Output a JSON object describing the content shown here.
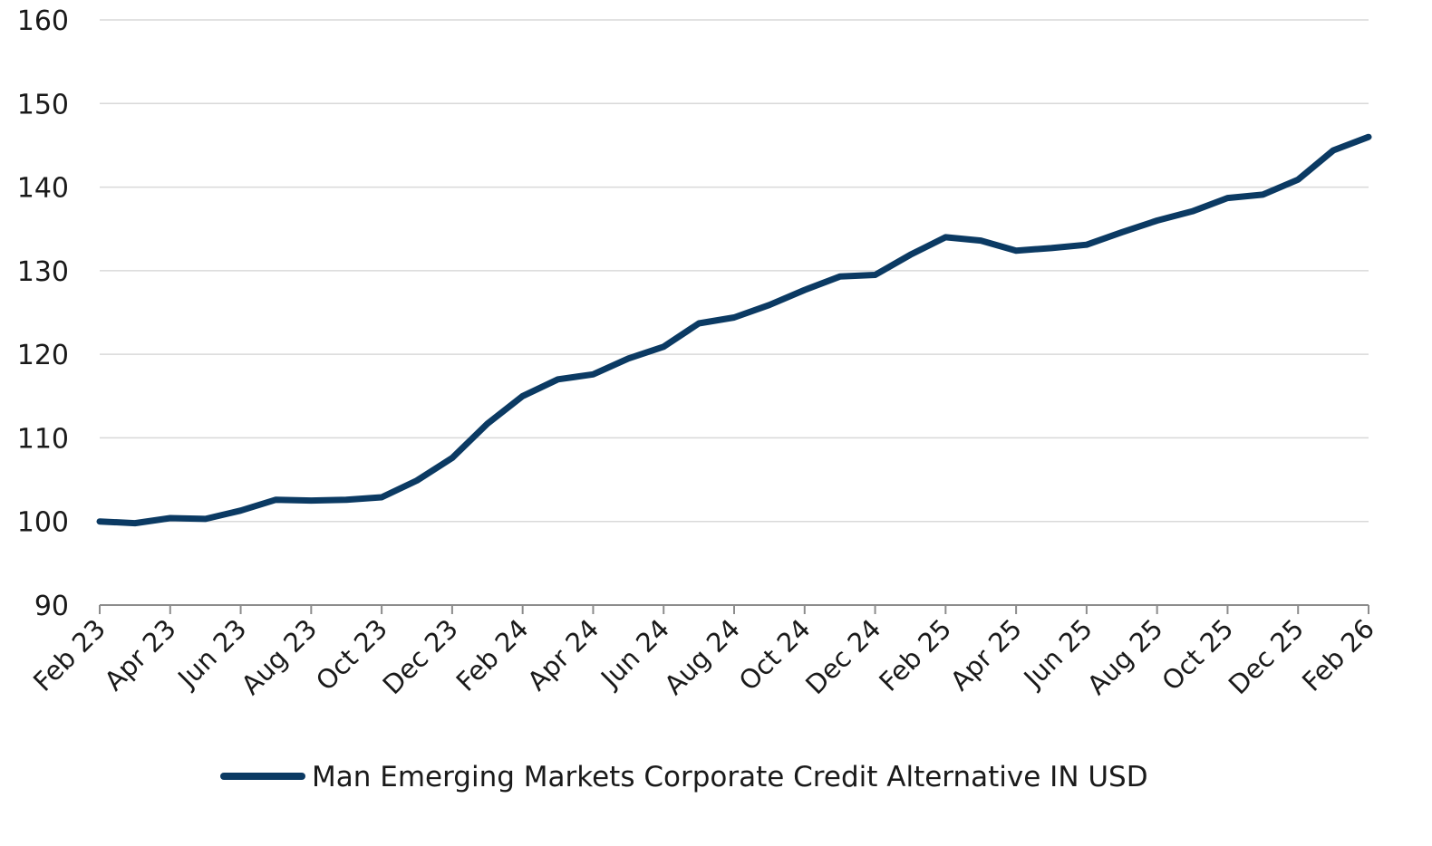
{
  "chart_data": {
    "type": "line",
    "title": "",
    "xlabel": "",
    "ylabel": "",
    "ylim": [
      90,
      160
    ],
    "yticks": [
      "160",
      "150",
      "140",
      "130",
      "120",
      "110",
      "100",
      "90"
    ],
    "xtick_labels": [
      "Feb 23",
      "Apr 23",
      "Jun 23",
      "Aug 23",
      "Oct 23",
      "Dec 23",
      "Feb 24",
      "Apr 24",
      "Jun 24",
      "Aug 24",
      "Oct 24",
      "Dec 24",
      "Feb 25",
      "Apr 25",
      "Jun 25",
      "Aug 25",
      "Oct 25",
      "Dec 25",
      "Feb 26"
    ],
    "grid": "horizontal",
    "legend_position": "bottom-center",
    "x": [
      "Feb 23",
      "Mar 23",
      "Apr 23",
      "May 23",
      "Jun 23",
      "Jul 23",
      "Aug 23",
      "Sep 23",
      "Oct 23",
      "Nov 23",
      "Dec 23",
      "Jan 24",
      "Feb 24",
      "Mar 24",
      "Apr 24",
      "May 24",
      "Jun 24",
      "Jul 24",
      "Aug 24",
      "Sep 24",
      "Oct 24",
      "Nov 24",
      "Dec 24",
      "Jan 25",
      "Feb 25",
      "Mar 25",
      "Apr 25",
      "May 25",
      "Jun 25",
      "Jul 25",
      "Aug 25",
      "Sep 25",
      "Oct 25",
      "Nov 25",
      "Dec 25",
      "Jan 26",
      "Feb 26"
    ],
    "series": [
      {
        "name": "Man Emerging Markets Corporate Credit Alternative IN USD",
        "color": "#0b3a63",
        "values": [
          100.0,
          99.8,
          100.4,
          100.3,
          101.3,
          102.6,
          102.5,
          102.6,
          102.9,
          104.9,
          107.6,
          111.7,
          115.0,
          117.0,
          117.6,
          119.5,
          120.9,
          123.7,
          124.4,
          125.9,
          127.7,
          129.3,
          129.5,
          131.9,
          134.0,
          133.6,
          132.4,
          132.7,
          133.1,
          134.6,
          136.0,
          137.1,
          138.7,
          139.1,
          140.9,
          144.4,
          146.0
        ]
      }
    ]
  }
}
